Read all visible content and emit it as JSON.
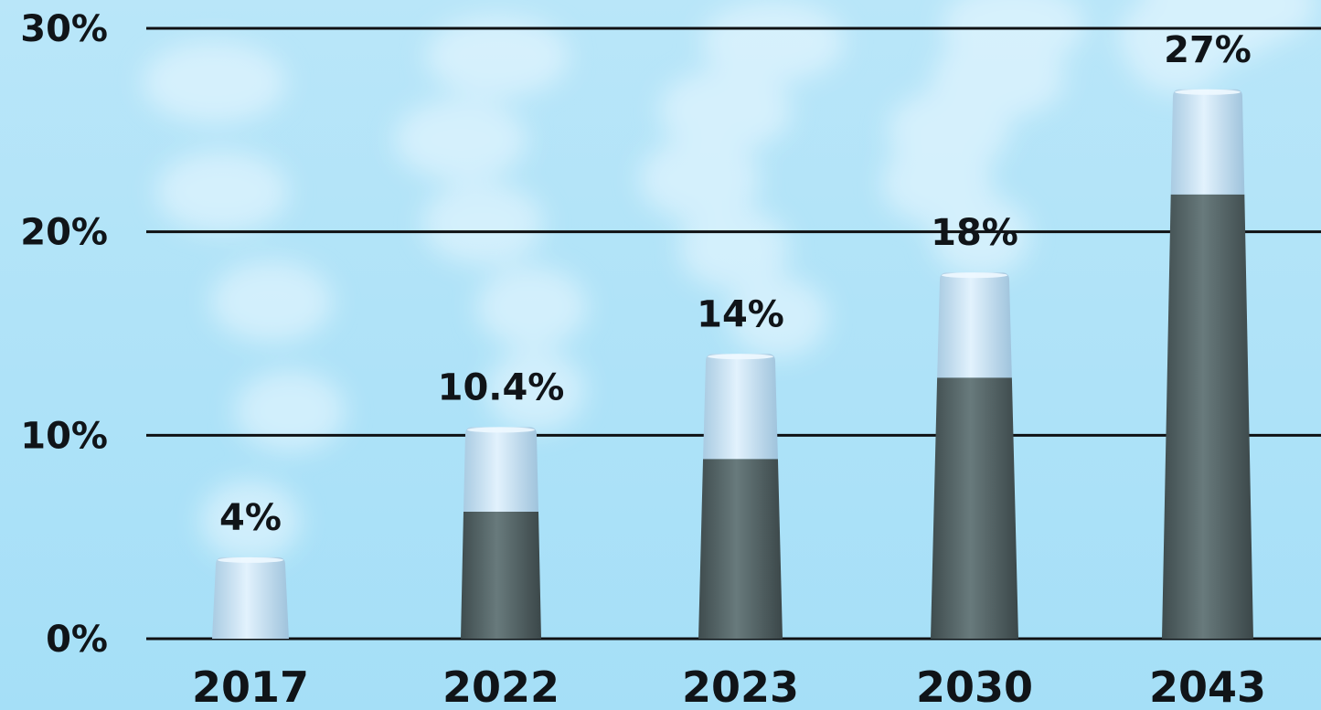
{
  "colors": {
    "sky_top": "#b9e6f9",
    "sky_bottom": "#a5dff7",
    "gridline": "#0f1113",
    "text": "#101418",
    "chimney_body": "#5a6a6c",
    "chimney_band": "#c9e6f9",
    "smoke": "#eef9ff"
  },
  "chart_data": {
    "type": "bar",
    "categories": [
      "2017",
      "2022",
      "2023",
      "2030",
      "2043"
    ],
    "values": [
      4,
      10.4,
      14,
      18,
      27
    ],
    "value_labels": [
      "4%",
      "10.4%",
      "14%",
      "18%",
      "27%"
    ],
    "yticks": [
      0,
      10,
      20,
      30
    ],
    "ytick_labels": [
      "0%",
      "10%",
      "20%",
      "30%"
    ],
    "ylim": [
      0,
      30
    ],
    "grid": true,
    "title": "",
    "xlabel": "",
    "ylabel": ""
  }
}
